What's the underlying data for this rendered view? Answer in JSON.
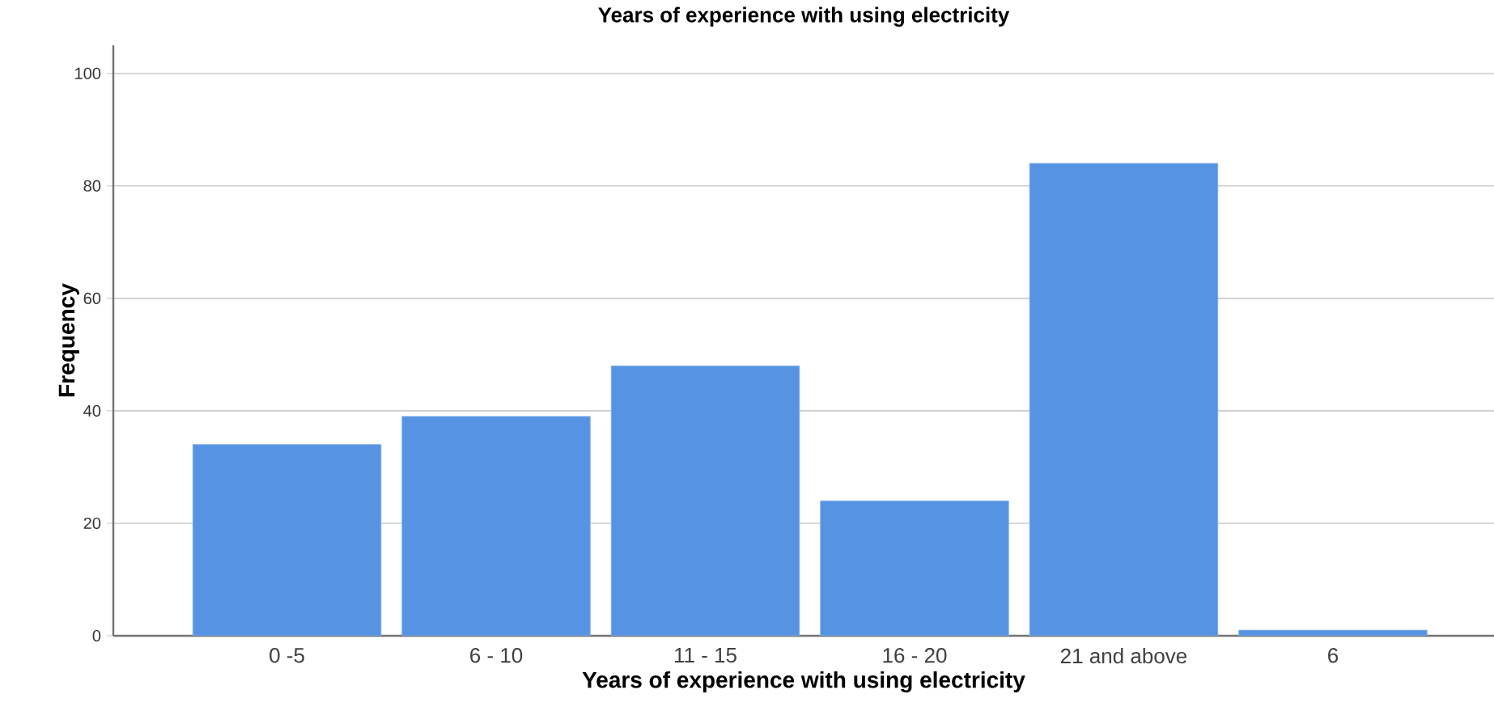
{
  "chart_data": {
    "type": "bar",
    "title": "Years of experience with using electricity",
    "xlabel": "Years of experience with using electricity",
    "ylabel": "Frequency",
    "categories": [
      "0 -5",
      "6 - 10",
      "11 - 15",
      "16 - 20",
      "21 and above",
      "6"
    ],
    "values": [
      34,
      39,
      48,
      24,
      84,
      1
    ],
    "color": "#5694e3",
    "ylim": [
      0,
      105
    ],
    "yticks": [
      0,
      20,
      40,
      60,
      80,
      100
    ],
    "grid": "y"
  }
}
